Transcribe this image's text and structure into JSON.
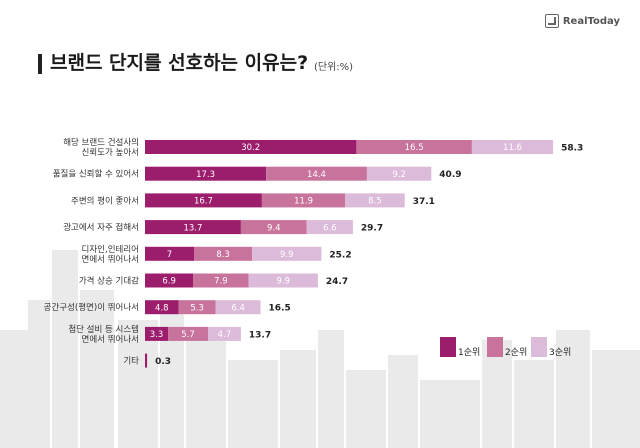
{
  "brand": {
    "name": "RealToday"
  },
  "title": "브랜드 단지를 선호하는 이유는?",
  "unit": "(단위:%)",
  "colors": {
    "rank1": "#9c1d6c",
    "rank2": "#c8739b",
    "rank3": "#dcbad9"
  },
  "chart_data": {
    "type": "bar",
    "orientation": "horizontal",
    "stacked": true,
    "categories": [
      [
        "해당 브랜드 건설사의",
        "신뢰도가 높아서"
      ],
      [
        "품질을 신뢰할 수 있어서"
      ],
      [
        "주변의 평이 좋아서"
      ],
      [
        "광고에서 자주 접해서"
      ],
      [
        "디자인,인테리어",
        "면에서 뛰어나서"
      ],
      [
        "가격 상승 기대감"
      ],
      [
        "공간구성(평면)이 뛰어나서"
      ],
      [
        "첨단 설비 등 시스템",
        "면에서 뛰어나서"
      ],
      [
        "기타"
      ]
    ],
    "series": [
      {
        "name": "1순위",
        "values": [
          30.2,
          17.3,
          16.7,
          13.7,
          7,
          6.9,
          4.8,
          3.3,
          0.3
        ]
      },
      {
        "name": "2순위",
        "values": [
          16.5,
          14.4,
          11.9,
          9.4,
          8.3,
          7.9,
          5.3,
          5.7,
          0
        ]
      },
      {
        "name": "3순위",
        "values": [
          11.6,
          9.2,
          8.5,
          6.6,
          9.9,
          9.9,
          6.4,
          4.7,
          0
        ]
      }
    ],
    "totals": [
      "58.3",
      "40.9",
      "37.1",
      "29.7",
      "25.2",
      "24.7",
      "16.5",
      "13.7",
      "0.3"
    ],
    "segment_labels": [
      [
        "30.2",
        "16.5",
        "11.6"
      ],
      [
        "17.3",
        "14.4",
        "9.2"
      ],
      [
        "16.7",
        "11.9",
        "8.5"
      ],
      [
        "13.7",
        "9.4",
        "6.6"
      ],
      [
        "7",
        "8.3",
        "9.9"
      ],
      [
        "6.9",
        "7.9",
        "9.9"
      ],
      [
        "4.8",
        "5.3",
        "6.4"
      ],
      [
        "3.3",
        "5.7",
        "4.7"
      ],
      [
        "",
        "",
        ""
      ]
    ],
    "legend_position": "bottom-right",
    "grid": false
  }
}
